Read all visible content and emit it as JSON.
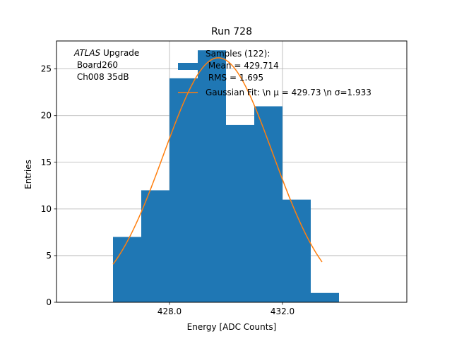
{
  "chart_data": {
    "type": "bar",
    "title": "Run 728",
    "xlabel": "Energy [ADC Counts]",
    "ylabel": "Entries",
    "xlim": [
      424.0,
      436.4
    ],
    "ylim": [
      0,
      28
    ],
    "xticks": [
      428.0,
      432.0
    ],
    "xtick_labels": [
      "428.0",
      "432.0"
    ],
    "yticks": [
      0,
      5,
      10,
      15,
      20,
      25
    ],
    "ytick_labels": [
      "0",
      "5",
      "10",
      "15",
      "20",
      "25"
    ],
    "grid": true,
    "bin_edges": [
      426,
      427,
      428,
      429,
      430,
      431,
      432,
      433,
      434
    ],
    "values": [
      7,
      12,
      24,
      27,
      19,
      21,
      11,
      1
    ],
    "bar_color": "#1f77b4",
    "fit": {
      "name": "Gaussian Fit",
      "mu": 429.73,
      "sigma": 1.933,
      "amplitude": 26.2,
      "x_range": [
        426.0,
        433.4
      ],
      "color": "#ff7f0e"
    },
    "annotation": {
      "atlas": "ATLAS",
      "line1_rest": " Upgrade",
      "line2": " Board260",
      "line3": " Ch008 35dB"
    },
    "legend": {
      "position": "top-right",
      "hist_lines": [
        "Samples (122):",
        " Mean = 429.714",
        " RMS = 1.695"
      ],
      "fit_label": "Gaussian Fit: \\n μ = 429.73 \\n σ=1.933"
    }
  }
}
